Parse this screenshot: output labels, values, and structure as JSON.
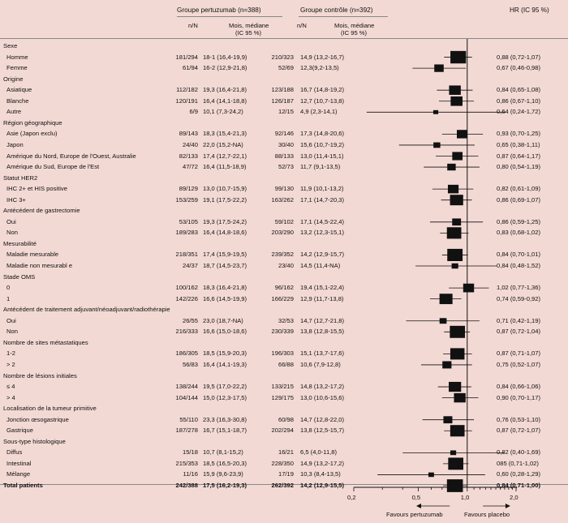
{
  "header": {
    "group1": "Groupe pertuzumab (n=388)",
    "group2": "Groupe contrôle (n=392)",
    "hr": "HR (IC 95 %)",
    "nn1": "n/N",
    "med1_l1": "Mois, médiane",
    "med1_l2": "(IC 95 %)",
    "nn2": "n/N",
    "med2_l1": "Mois, médiane",
    "med2_l2": "(IC 95 %)"
  },
  "rows": [
    {
      "type": "cat",
      "label": "Sexe"
    },
    {
      "type": "sub",
      "label": "Homme",
      "nn1": "181/294",
      "med1": "18-1 (16,4-19,9)",
      "nn2": "210/323",
      "med2": "14,9 (13,2-16,7)",
      "hr": "0,88 (0,72-1,07)",
      "est": 0.88,
      "lo": 0.72,
      "hi": 1.07,
      "w": 239
    },
    {
      "type": "sub",
      "label": "Femme",
      "nn1": "61/94",
      "med1": "16-2 (12,9-21,8)",
      "nn2": "52/69",
      "med2": "12,3(9,2-13,5)",
      "hr": "0,67 (0,46-0,98)",
      "est": 0.67,
      "lo": 0.46,
      "hi": 0.98,
      "w": 67
    },
    {
      "type": "cat",
      "label": "Origine"
    },
    {
      "type": "sub",
      "label": "Asiatique",
      "nn1": "112/182",
      "med1": "19,3 (16,4-21,8)",
      "nn2": "123/188",
      "med2": "16,7 (14,8-19,2)",
      "hr": "0,84 (0,65-1,08)",
      "est": 0.84,
      "lo": 0.65,
      "hi": 1.08,
      "w": 118
    },
    {
      "type": "sub",
      "label": "Blanche",
      "nn1": "120/191",
      "med1": "16,4 (14,1-18,8)",
      "nn2": "126/187",
      "med2": "12,7 (10,7-13,8)",
      "hr": "0,86 (0,67-1,10)",
      "est": 0.86,
      "lo": 0.67,
      "hi": 1.1,
      "w": 122
    },
    {
      "type": "sub",
      "label": "Autre",
      "nn1": "6/9",
      "med1": "10,1 (7,3-24,2)",
      "nn2": "12/15",
      "med2": "4,9 (2,3-14,1)",
      "hr": "0,64 (0,24-1,72)",
      "est": 0.64,
      "lo": 0.24,
      "hi": 1.72,
      "w": 9
    },
    {
      "type": "cat",
      "label": "Région géographique"
    },
    {
      "type": "sub",
      "label": "Asie (Japon exclu)",
      "nn1": "89/143",
      "med1": "18,3 (15,4-21,3)",
      "nn2": "92/146",
      "med2": "17,3 (14,8-20,6)",
      "hr": "0,93 (0,70-1,25)",
      "est": 0.93,
      "lo": 0.7,
      "hi": 1.25,
      "w": 90
    },
    {
      "type": "sub",
      "label": "Japon",
      "nn1": "24/40",
      "med1": "22,0 (15,2-NA)",
      "nn2": "30/40",
      "med2": "15,6 (10,7-19,2)",
      "hr": "0,65 (0,38-1,11)",
      "est": 0.65,
      "lo": 0.38,
      "hi": 1.11,
      "w": 27
    },
    {
      "type": "sub",
      "label": "Amérique du Nord, Europe de l'Ouest, Australie",
      "nn1": "82/133",
      "med1": "17,4 (12,7-22,1)",
      "nn2": "88/133",
      "med2": "13,0 (11,4-15,1)",
      "hr": "0,87 (0,64-1,17)",
      "est": 0.87,
      "lo": 0.64,
      "hi": 1.17,
      "w": 85
    },
    {
      "type": "sub",
      "label": "Amérique du Sud, Europe de l'Est",
      "nn1": "47/72",
      "med1": "16,4 (11,5-18,9)",
      "nn2": "52/73",
      "med2": "11,7 (9,1-13,5)",
      "hr": "0,80 (0,54-1,19)",
      "est": 0.8,
      "lo": 0.54,
      "hi": 1.19,
      "w": 50
    },
    {
      "type": "cat",
      "label": "Statut HER2"
    },
    {
      "type": "sub",
      "label": "IHC 2+ et  HIS positive",
      "nn1": "89/129",
      "med1": "13,0 (10,7-15,9)",
      "nn2": "99/130",
      "med2": "11,9 (10,1-13,2)",
      "hr": "0,82 (0,61-1,09)",
      "est": 0.82,
      "lo": 0.61,
      "hi": 1.09,
      "w": 94
    },
    {
      "type": "sub",
      "label": "IHC 3+",
      "nn1": "153/259",
      "med1": "19,1 (17,5-22,2)",
      "nn2": "163/262",
      "med2": "17,1 (14,7-20,3)",
      "hr": "0,86 (0,69-1,07)",
      "est": 0.86,
      "lo": 0.69,
      "hi": 1.07,
      "w": 158
    },
    {
      "type": "cat",
      "label": "Antécédent de gastrectomie"
    },
    {
      "type": "sub",
      "label": "Oui",
      "nn1": "53/105",
      "med1": "19,3 (17,5-24,2)",
      "nn2": "59/102",
      "med2": "17,1 (14,5-22,4)",
      "hr": "0,86 (0,59-1,25)",
      "est": 0.86,
      "lo": 0.59,
      "hi": 1.25,
      "w": 56
    },
    {
      "type": "sub",
      "label": "Non",
      "nn1": "189/283",
      "med1": "16,4 (14,8-18,6)",
      "nn2": "203/290",
      "med2": "13,2 (12,3-15,1)",
      "hr": "0,83 (0,68-1,02)",
      "est": 0.83,
      "lo": 0.68,
      "hi": 1.02,
      "w": 196
    },
    {
      "type": "cat",
      "label": "Mesurabilité"
    },
    {
      "type": "sub",
      "label": "Maladie mesurable",
      "nn1": "218/351",
      "med1": "17,4 (15,9-19,5)",
      "nn2": "239/352",
      "med2": "14,2 (12,9-15,7)",
      "hr": "0,84 (0,70-1,01)",
      "est": 0.84,
      "lo": 0.7,
      "hi": 1.01,
      "w": 228
    },
    {
      "type": "sub",
      "label": "Maladie non mesurabl e",
      "nn1": "24/37",
      "med1": "18,7 (14,5-23,7)",
      "nn2": "23/40",
      "med2": "14,5 (11,4-NA)",
      "hr": "0,84 (0,48-1,52)",
      "est": 0.84,
      "lo": 0.48,
      "hi": 1.52,
      "w": 24
    },
    {
      "type": "cat",
      "label": "Stade OMS"
    },
    {
      "type": "sub",
      "label": "0",
      "nn1": "100/162",
      "med1": "18,3 (16,4-21,8)",
      "nn2": "96/162",
      "med2": "19,4 (15,1-22,4)",
      "hr": "1,02 (0,77-1,36)",
      "est": 1.02,
      "lo": 0.77,
      "hi": 1.36,
      "w": 98
    },
    {
      "type": "sub",
      "label": "1",
      "nn1": "142/226",
      "med1": "16,6 (14,5-19,9)",
      "nn2": "166/229",
      "med2": "12,9 (11,7-13,8)",
      "hr": "0,74 (0,59-0,92)",
      "est": 0.74,
      "lo": 0.59,
      "hi": 0.92,
      "w": 154
    },
    {
      "type": "cat",
      "label": "Antécédent de traitement adjuvant/néoadjuvant/radiothérapie"
    },
    {
      "type": "sub",
      "label": "Oui",
      "nn1": "26/55",
      "med1": "23,0 (18,7-NA)",
      "nn2": "32/53",
      "med2": "14,7 (12,7-21,8)",
      "hr": "0,71 (0,42-1,19)",
      "est": 0.71,
      "lo": 0.42,
      "hi": 1.19,
      "w": 29
    },
    {
      "type": "sub",
      "label": "Non",
      "nn1": "216/333",
      "med1": "16,6 (15,0-18,6)",
      "nn2": "230/339",
      "med2": "13,8 (12,8-15,5)",
      "hr": "0,87 (0,72-1,04)",
      "est": 0.87,
      "lo": 0.72,
      "hi": 1.04,
      "w": 223
    },
    {
      "type": "cat",
      "label": "Nombre de sites métastatiques"
    },
    {
      "type": "sub",
      "label": "1-2",
      "nn1": "186/305",
      "med1": "18,5 (15,9-20,3)",
      "nn2": "196/303",
      "med2": "15,1 (13,7-17,6)",
      "hr": "0,87 (0,71-1,07)",
      "est": 0.87,
      "lo": 0.71,
      "hi": 1.07,
      "w": 191
    },
    {
      "type": "sub",
      "label": "> 2",
      "nn1": "56/83",
      "med1": "16,4 (14,1-19,3)",
      "nn2": "66/88",
      "med2": "10,6 (7,9-12,8)",
      "hr": "0,75 (0,52-1,07)",
      "est": 0.75,
      "lo": 0.52,
      "hi": 1.07,
      "w": 61
    },
    {
      "type": "cat",
      "label": "Nombre de lésions initiales"
    },
    {
      "type": "sub",
      "label": "≤ 4",
      "nn1": "138/244",
      "med1": "19,5 (17,0-22,2)",
      "nn2": "133/215",
      "med2": "14,8 (13,2-17,2)",
      "hr": "0,84 (0,66-1,06)",
      "est": 0.84,
      "lo": 0.66,
      "hi": 1.06,
      "w": 136
    },
    {
      "type": "sub",
      "label": "> 4",
      "nn1": "104/144",
      "med1": "15,0 (12,3-17,5)",
      "nn2": "129/175",
      "med2": "13,0 (10,6-15,6)",
      "hr": "0,90 (0,70-1,17)",
      "est": 0.9,
      "lo": 0.7,
      "hi": 1.17,
      "w": 117
    },
    {
      "type": "cat",
      "label": "Localisation de la tumeur primitive"
    },
    {
      "type": "sub",
      "label": "Jonction œsogastrique",
      "nn1": "55/110",
      "med1": "23,3 (16,3-30,8)",
      "nn2": "60/98",
      "med2": "14,7 (12,8-22,0)",
      "hr": "0,76 (0,53-1,10)",
      "est": 0.76,
      "lo": 0.53,
      "hi": 1.1,
      "w": 58
    },
    {
      "type": "sub",
      "label": "Gastrique",
      "nn1": "187/278",
      "med1": "16,7 (15,1-18,7)",
      "nn2": "202/294",
      "med2": "13,8 (12,5-15,7)",
      "hr": "0,87 (0,72-1,07)",
      "est": 0.87,
      "lo": 0.72,
      "hi": 1.07,
      "w": 195
    },
    {
      "type": "cat",
      "label": "Sous-type histologique"
    },
    {
      "type": "sub",
      "label": "Diffus",
      "nn1": "15/18",
      "med1": "10,7 (8,1-15,2)",
      "nn2": "16/21",
      "med2": "6,5 (4,0-11,8)",
      "hr": "0,82 (0,40-1,69)",
      "est": 0.82,
      "lo": 0.4,
      "hi": 1.69,
      "w": 16
    },
    {
      "type": "sub",
      "label": "Intestinal",
      "nn1": "215/353",
      "med1": "18,5 (16,5-20,3)",
      "nn2": "228/350",
      "med2": "14,9 (13,2-17,2)",
      "hr": "085 (0,71-1,02)",
      "est": 0.85,
      "lo": 0.71,
      "hi": 1.02,
      "w": 222
    },
    {
      "type": "sub",
      "label": "Mélange",
      "nn1": "11/16",
      "med1": "15,9 (9,6-23,9)",
      "nn2": "17/19",
      "med2": "10,3 (8,4-13,5)",
      "hr": "0,60 (0,28-1,29)",
      "est": 0.6,
      "lo": 0.28,
      "hi": 1.29,
      "w": 14
    },
    {
      "type": "total",
      "label": "Total patients",
      "nn1": "242/388",
      "med1": "17,5 (16,2-19,3)",
      "nn2": "262/392",
      "med2": "14,2 (12,9-15,5)",
      "hr": "0,84 (0,71-1,00)",
      "est": 0.84,
      "lo": 0.71,
      "hi": 1.0,
      "w": 252
    }
  ],
  "axis": {
    "ticks": [
      {
        "v": 0.2,
        "label": "0,2"
      },
      {
        "v": 0.5,
        "label": "0,5"
      },
      {
        "v": 1.0,
        "label": "1,0"
      },
      {
        "v": 2.0,
        "label": "2,0"
      }
    ],
    "favours_left": "Favours pertuzumab",
    "favours_right": "Favours placebo"
  },
  "chart_data": {
    "type": "forest",
    "scale": "log",
    "xlim": [
      0.2,
      2.0
    ],
    "reference_line": 1.0,
    "x_ticks": [
      0.2,
      0.5,
      1.0,
      2.0
    ],
    "columns": [
      "n/N",
      "Mois, médiane (IC 95 %)",
      "n/N",
      "Mois, médiane (IC 95 %)",
      "HR (IC 95 %)"
    ],
    "groups": [
      "Groupe pertuzumab (n=388)",
      "Groupe contrôle (n=392)"
    ]
  },
  "colors": {
    "background": "#f3d9d4",
    "marker": "#111111"
  }
}
